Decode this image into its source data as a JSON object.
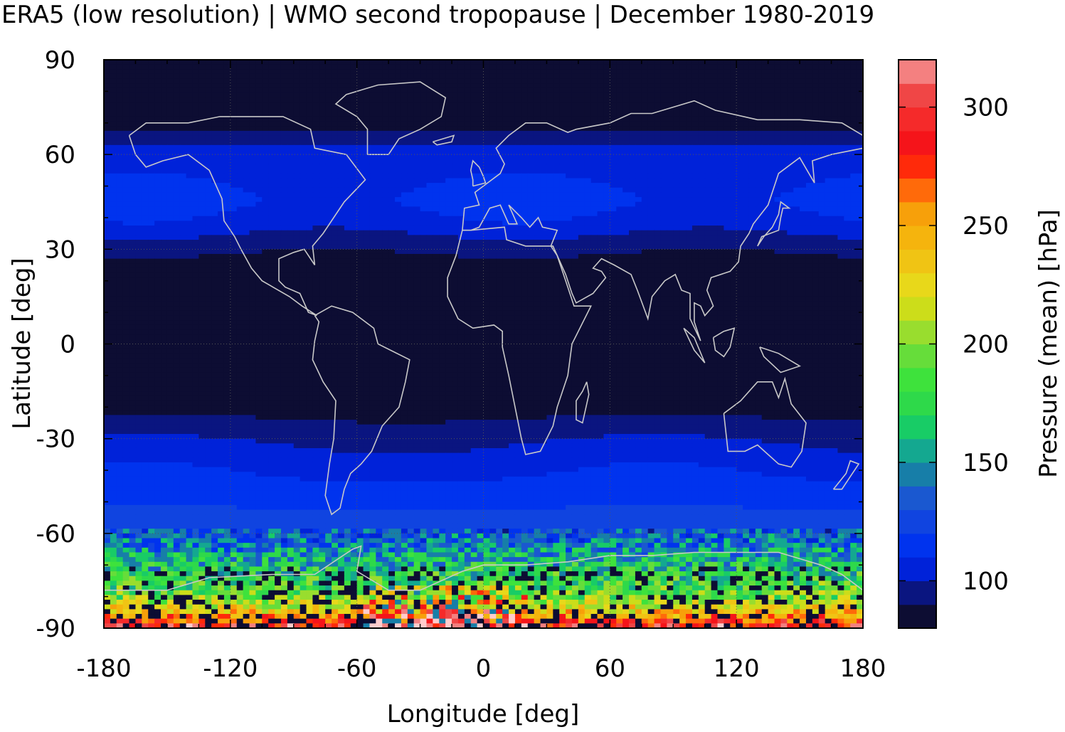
{
  "chart_data": {
    "type": "heatmap",
    "title": "ERA5 (low resolution) | WMO second tropopause | December 1980-2019",
    "xlabel": "Longitude [deg]",
    "ylabel": "Latitude [deg]",
    "colorbar_label": "Pressure (mean) [hPa]",
    "xlim": [
      -180,
      180
    ],
    "ylim": [
      -90,
      90
    ],
    "x_ticks": [
      -180,
      -120,
      -60,
      0,
      60,
      120,
      180
    ],
    "y_ticks": [
      90,
      60,
      30,
      0,
      -30,
      -60,
      -90
    ],
    "colorbar_ticks": [
      100,
      150,
      200,
      250,
      300
    ],
    "colorbar_range": [
      80,
      320
    ],
    "colorbar_step": 10,
    "colorbar_colors": [
      "#0d0d33",
      "#0a1580",
      "#0022d9",
      "#0033ee",
      "#1044e0",
      "#1a58d0",
      "#177ea8",
      "#14a890",
      "#18cc66",
      "#2ed94a",
      "#3ee23c",
      "#66dd3a",
      "#99dd2e",
      "#ccdd1a",
      "#e8d81a",
      "#f0c414",
      "#f5b40d",
      "#f7a00a",
      "#ff6a0a",
      "#ff2a0a",
      "#f5141a",
      "#f52a2a",
      "#f04646",
      "#f48080",
      "#ffcccc"
    ],
    "grid": "dotted",
    "coastlines": true,
    "latitude_profile": [
      {
        "lat": 90,
        "value": 82
      },
      {
        "lat": 75,
        "value": 82
      },
      {
        "lat": 68,
        "value": 90
      },
      {
        "lat": 62,
        "value": 102
      },
      {
        "lat": 55,
        "value": 108
      },
      {
        "lat": 45,
        "value": 112
      },
      {
        "lat": 38,
        "value": 106
      },
      {
        "lat": 32,
        "value": 95
      },
      {
        "lat": 25,
        "value": 85
      },
      {
        "lat": 15,
        "value": 82
      },
      {
        "lat": 0,
        "value": 82
      },
      {
        "lat": -15,
        "value": 82
      },
      {
        "lat": -22,
        "value": 88
      },
      {
        "lat": -28,
        "value": 96
      },
      {
        "lat": -35,
        "value": 104
      },
      {
        "lat": -42,
        "value": 110
      },
      {
        "lat": -50,
        "value": 118
      },
      {
        "lat": -58,
        "value": 126
      },
      {
        "lat": -63,
        "value": 138
      },
      {
        "lat": -68,
        "value": 160
      },
      {
        "lat": -74,
        "value": 175
      },
      {
        "lat": -80,
        "value": 195
      },
      {
        "lat": -85,
        "value": 240
      },
      {
        "lat": -88,
        "value": 280
      },
      {
        "lat": -90,
        "value": 300
      }
    ]
  }
}
